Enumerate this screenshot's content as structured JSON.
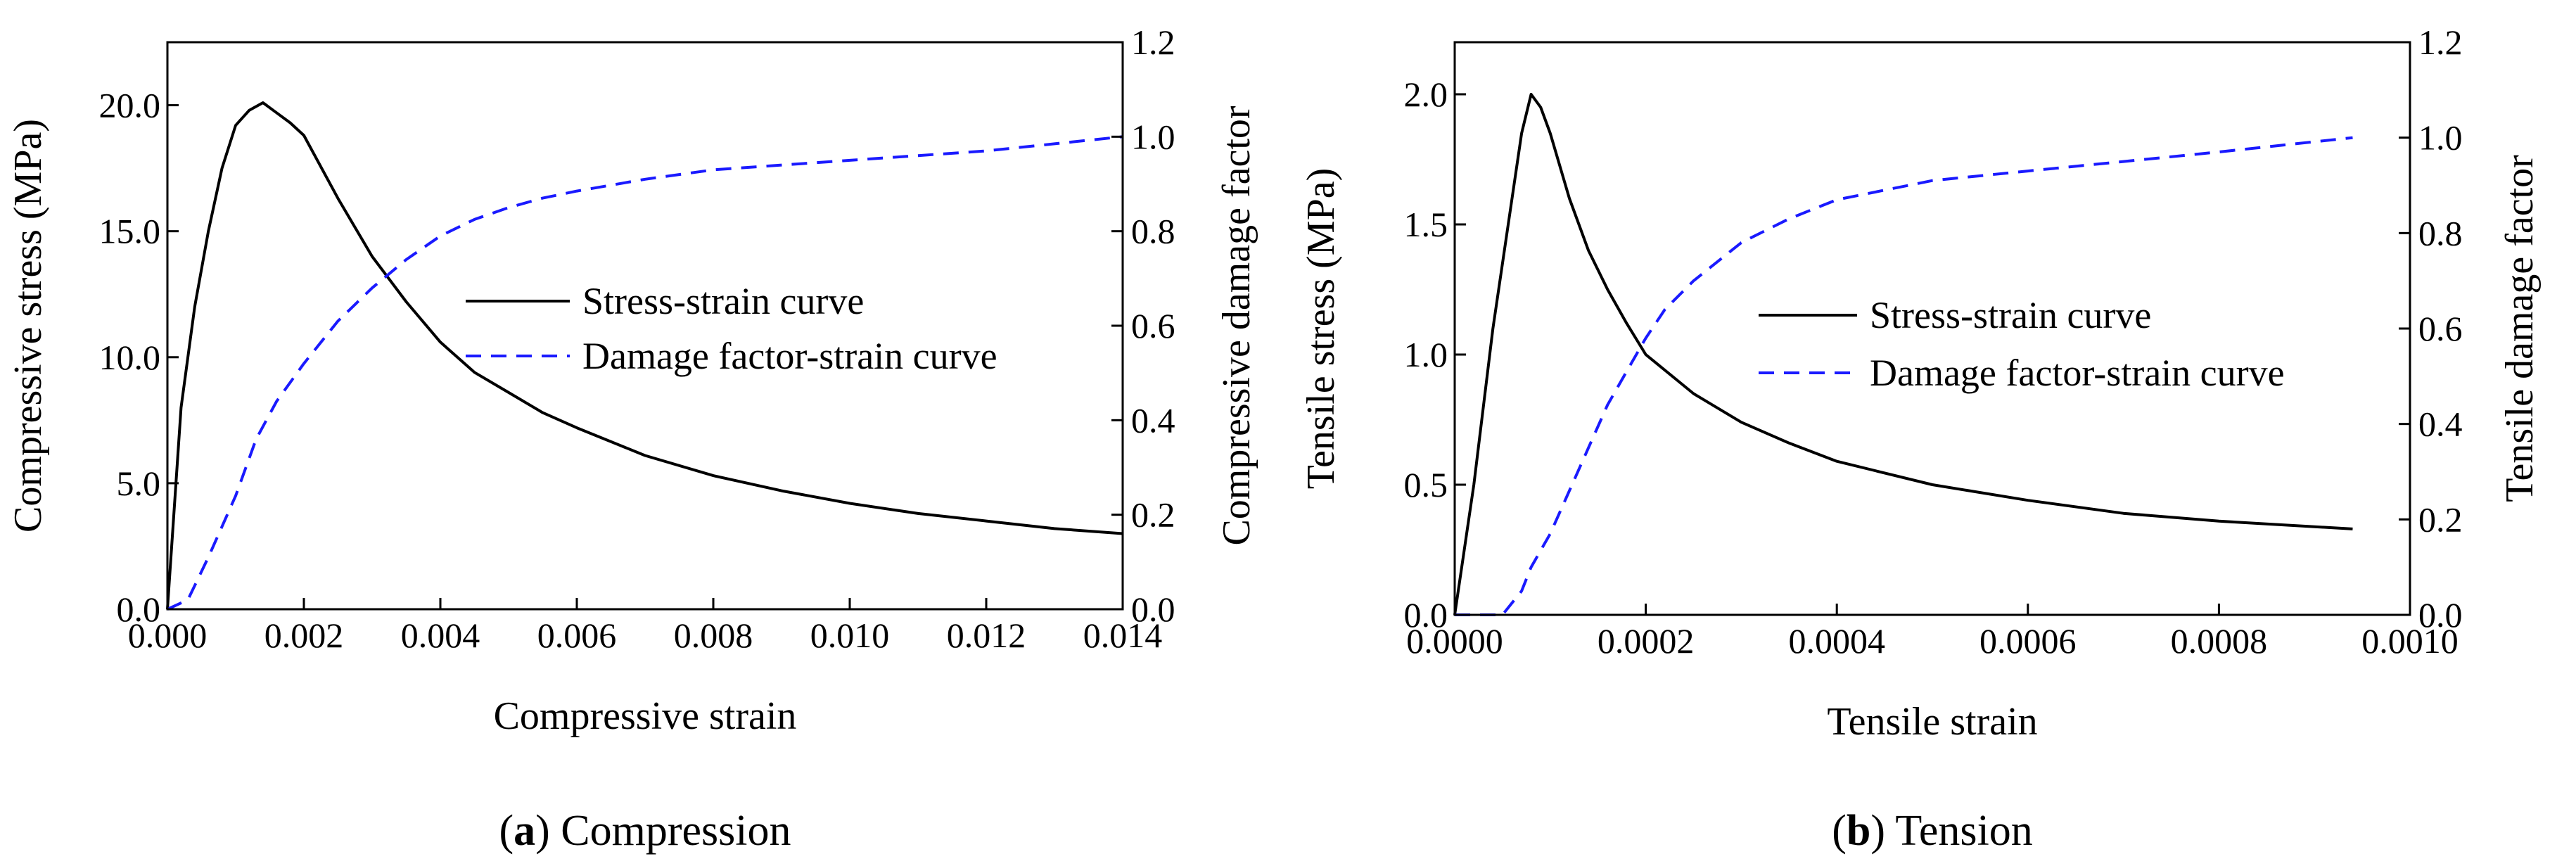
{
  "chart_data": [
    {
      "type": "line",
      "id": "a",
      "caption": {
        "letter": "a",
        "text": "Compression"
      },
      "xlabel": "Compressive strain",
      "ylabel_left": "Compressive stress (MPa)",
      "ylabel_right": "Compressive damage factor",
      "xlim": [
        0,
        0.014
      ],
      "ylim_left": [
        0,
        22.5
      ],
      "ylim_right": [
        0,
        1.2
      ],
      "x_ticks": [
        "0.000",
        "0.002",
        "0.004",
        "0.006",
        "0.008",
        "0.010",
        "0.012",
        "0.014"
      ],
      "x_tick_values": [
        0,
        0.002,
        0.004,
        0.006,
        0.008,
        0.01,
        0.012,
        0.014
      ],
      "y_left_ticks": [
        "0.0",
        "5.0",
        "10.0",
        "15.0",
        "20.0"
      ],
      "y_left_tick_values": [
        0,
        5,
        10,
        15,
        20
      ],
      "y_right_ticks": [
        "0.0",
        "0.2",
        "0.4",
        "0.6",
        "0.8",
        "1.0",
        "1.2"
      ],
      "y_right_tick_values": [
        0,
        0.2,
        0.4,
        0.6,
        0.8,
        1.0,
        1.2
      ],
      "legend": [
        "Stress-strain curve",
        "Damage factor-strain curve"
      ],
      "series": [
        {
          "name": "Stress-strain curve",
          "axis": "left",
          "color": "#000000",
          "dash": "solid",
          "x": [
            0,
            0.0001,
            0.0002,
            0.0004,
            0.0006,
            0.0008,
            0.001,
            0.0012,
            0.0014,
            0.0016,
            0.0018,
            0.002,
            0.0025,
            0.003,
            0.0035,
            0.004,
            0.0045,
            0.005,
            0.0055,
            0.006,
            0.007,
            0.008,
            0.009,
            0.01,
            0.011,
            0.012,
            0.013,
            0.014
          ],
          "y": [
            0,
            4.0,
            8.0,
            12.0,
            15.0,
            17.5,
            19.2,
            19.8,
            20.1,
            19.7,
            19.3,
            18.8,
            16.3,
            14.0,
            12.2,
            10.6,
            9.4,
            8.6,
            7.8,
            7.2,
            6.1,
            5.3,
            4.7,
            4.2,
            3.8,
            3.5,
            3.2,
            3.0
          ]
        },
        {
          "name": "Damage factor-strain curve",
          "axis": "right",
          "color": "#1a1aff",
          "dash": "dashed",
          "x": [
            0,
            0.0003,
            0.0006,
            0.001,
            0.0013,
            0.0016,
            0.002,
            0.0025,
            0.003,
            0.0035,
            0.004,
            0.0045,
            0.005,
            0.0055,
            0.006,
            0.007,
            0.008,
            0.009,
            0.01,
            0.011,
            0.012,
            0.013,
            0.014
          ],
          "y": [
            0,
            0.02,
            0.11,
            0.24,
            0.36,
            0.44,
            0.52,
            0.61,
            0.68,
            0.74,
            0.79,
            0.825,
            0.85,
            0.87,
            0.885,
            0.91,
            0.93,
            0.94,
            0.95,
            0.96,
            0.97,
            0.985,
            1.0
          ]
        }
      ]
    },
    {
      "type": "line",
      "id": "b",
      "caption": {
        "letter": "b",
        "text": "Tension"
      },
      "xlabel": "Tensile strain",
      "ylabel_left": "Tensile stress (MPa)",
      "ylabel_right": "Tensile damage factor",
      "xlim": [
        0,
        0.001
      ],
      "ylim_left": [
        0,
        2.2
      ],
      "ylim_right": [
        0,
        1.2
      ],
      "x_ticks": [
        "0.0000",
        "0.0002",
        "0.0004",
        "0.0006",
        "0.0008",
        "0.0010"
      ],
      "x_tick_values": [
        0,
        0.0002,
        0.0004,
        0.0006,
        0.0008,
        0.001
      ],
      "y_left_ticks": [
        "0.0",
        "0.5",
        "1.0",
        "1.5",
        "2.0"
      ],
      "y_left_tick_values": [
        0,
        0.5,
        1.0,
        1.5,
        2.0
      ],
      "y_right_ticks": [
        "0.0",
        "0.2",
        "0.4",
        "0.6",
        "0.8",
        "1.0",
        "1.2"
      ],
      "y_right_tick_values": [
        0,
        0.2,
        0.4,
        0.6,
        0.8,
        1.0,
        1.2
      ],
      "legend": [
        "Stress-strain curve",
        "Damage factor-strain curve"
      ],
      "series": [
        {
          "name": "Stress-strain curve",
          "axis": "left",
          "color": "#000000",
          "dash": "solid",
          "x": [
            0,
            2e-05,
            4e-05,
            6e-05,
            7e-05,
            8e-05,
            9e-05,
            0.0001,
            0.00012,
            0.00014,
            0.00016,
            0.00018,
            0.0002,
            0.00025,
            0.0003,
            0.00035,
            0.0004,
            0.0005,
            0.0006,
            0.0007,
            0.0008,
            0.00094
          ],
          "y": [
            0,
            0.5,
            1.1,
            1.6,
            1.85,
            2.0,
            1.95,
            1.85,
            1.6,
            1.4,
            1.25,
            1.12,
            1.0,
            0.85,
            0.74,
            0.66,
            0.59,
            0.5,
            0.44,
            0.39,
            0.36,
            0.33
          ]
        },
        {
          "name": "Damage factor-strain curve",
          "axis": "right",
          "color": "#1a1aff",
          "dash": "dashed",
          "x": [
            0,
            5e-05,
            7e-05,
            8e-05,
            0.0001,
            0.00012,
            0.00014,
            0.00016,
            0.00018,
            0.0002,
            0.00022,
            0.00025,
            0.0003,
            0.00035,
            0.0004,
            0.0005,
            0.0006,
            0.0007,
            0.0008,
            0.00094
          ],
          "y": [
            0,
            0.0,
            0.05,
            0.1,
            0.17,
            0.26,
            0.35,
            0.44,
            0.51,
            0.58,
            0.64,
            0.7,
            0.78,
            0.83,
            0.87,
            0.91,
            0.93,
            0.95,
            0.97,
            1.0
          ]
        }
      ]
    }
  ],
  "colors": {
    "stress": "#000000",
    "damage": "#1a1aff"
  }
}
